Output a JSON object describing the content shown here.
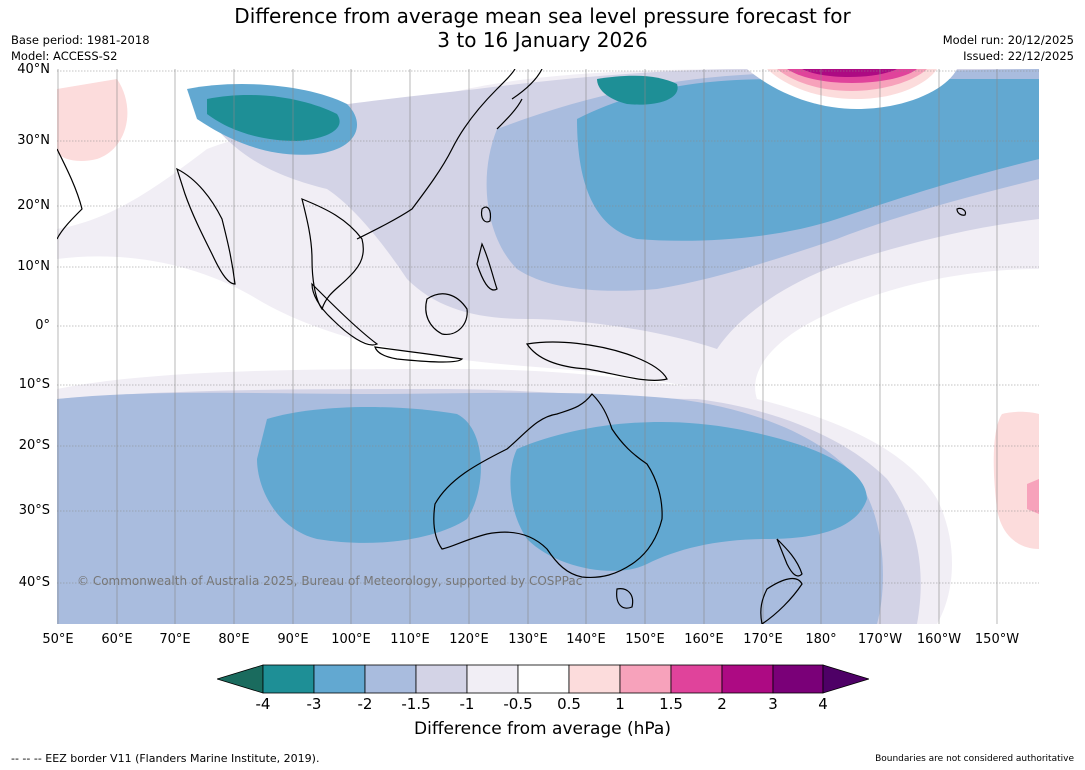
{
  "title_line1": "Difference from average mean sea level pressure forecast for",
  "title_line2": "3 to 16 January 2026",
  "base_period": "Base period: 1981-2018",
  "model": "Model: ACCESS-S2",
  "model_run": "Model run: 20/12/2025",
  "issued": "Issued: 22/12/2025",
  "lat_labels": [
    "40°N",
    "30°N",
    "20°N",
    "10°N",
    "0°",
    "10°S",
    "20°S",
    "30°S",
    "40°S"
  ],
  "lon_labels": [
    "50°E",
    "60°E",
    "70°E",
    "80°E",
    "90°E",
    "100°E",
    "110°E",
    "120°E",
    "130°E",
    "140°E",
    "150°E",
    "160°E",
    "170°E",
    "180°",
    "170°W",
    "160°W",
    "150°W"
  ],
  "copyright": "© Commonwealth of Australia 2025, Bureau of Meteorology, supported by COSPPac",
  "colorbar": {
    "ticks": [
      "-4",
      "-3",
      "-2",
      "-1.5",
      "-1",
      "-0.5",
      "0.5",
      "1",
      "1.5",
      "2",
      "3",
      "4"
    ],
    "colors": [
      "#1a6b5e",
      "#1e8f96",
      "#62a8d1",
      "#a9bcde",
      "#d3d3e6",
      "#f1eef5",
      "#ffffff",
      "#fcdcdc",
      "#f7a2bb",
      "#e0439b",
      "#ad0a83",
      "#7a0078",
      "#4e0066"
    ],
    "label": "Difference from average (hPa)"
  },
  "eez_note": "--  --  -- EEZ border V11 (Flanders Marine Institute, 2019).",
  "boundaries_note": "Boundaries are not considered authoritative"
}
